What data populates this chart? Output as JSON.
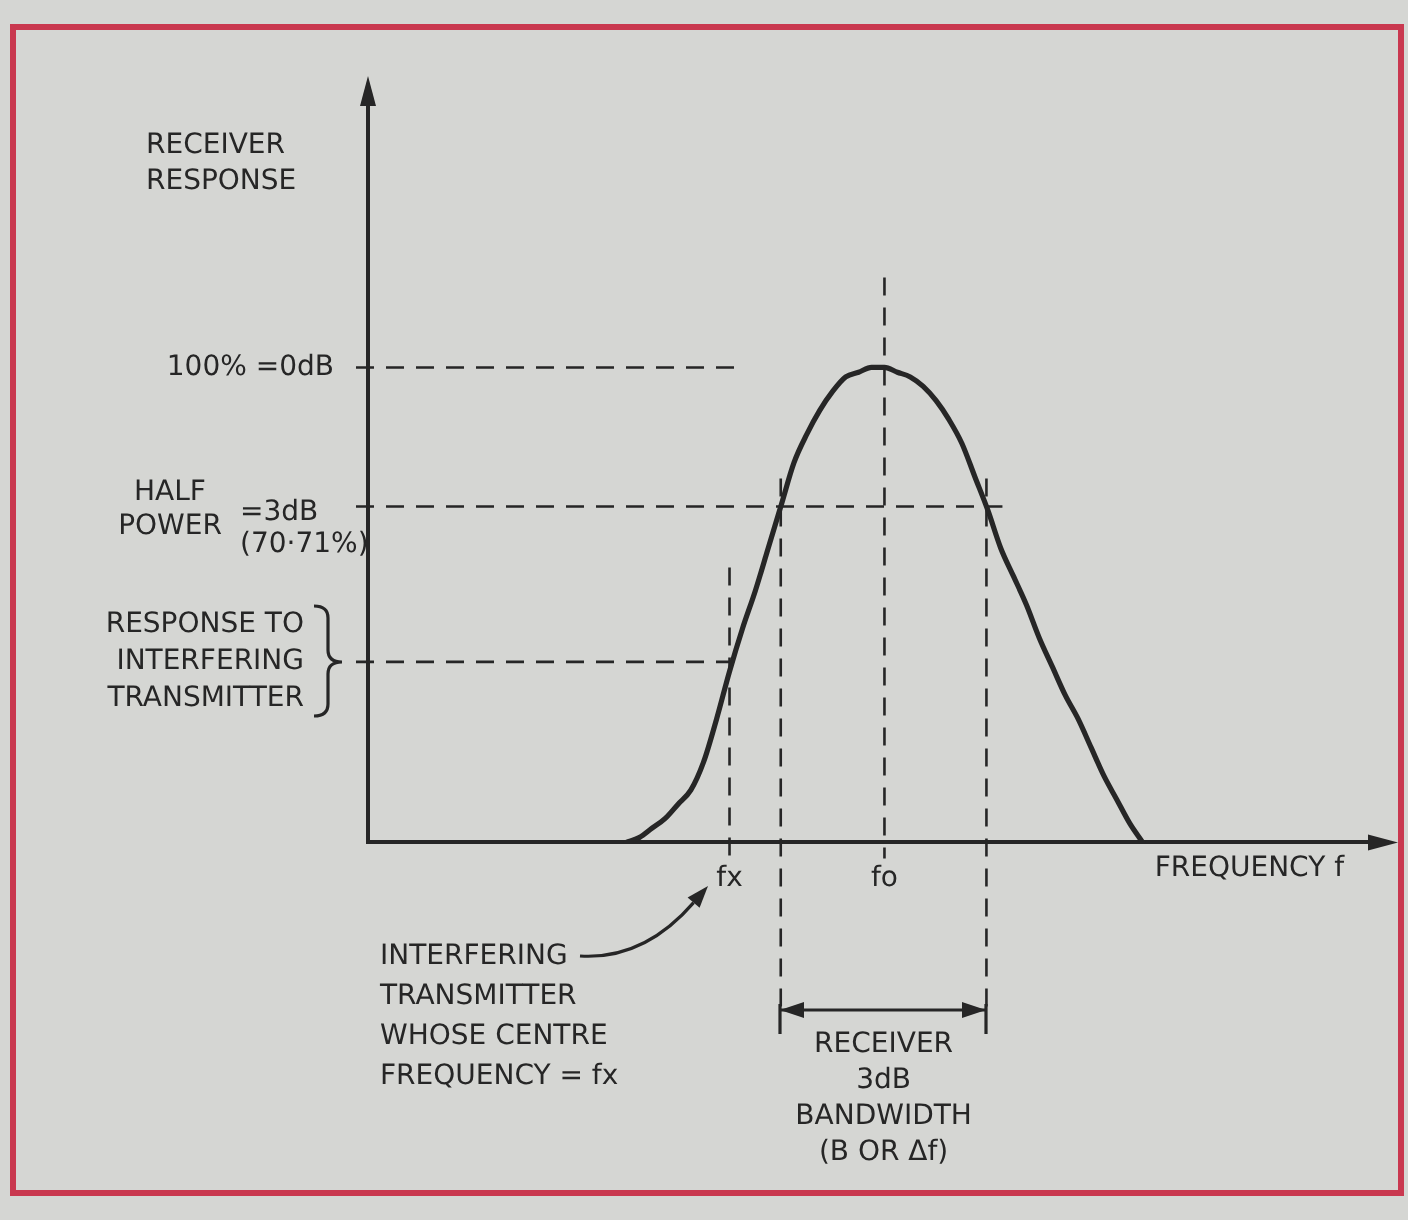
{
  "chart_data": {
    "type": "line",
    "xlabel": "FREQUENCY f",
    "ylabel": "RECEIVER RESPONSE",
    "categories": [
      null,
      null,
      null,
      null,
      null,
      null,
      null,
      null,
      null,
      null,
      null,
      null,
      null,
      null,
      null,
      null,
      null,
      null,
      null,
      null,
      null,
      null,
      null,
      null,
      null,
      null,
      null,
      null,
      "fx",
      null,
      null,
      null,
      null,
      null,
      null,
      null,
      null,
      null,
      null,
      null,
      "fo",
      null,
      null,
      null,
      null,
      null,
      null,
      null,
      null,
      null,
      null,
      null,
      null,
      null,
      null,
      null,
      null,
      null,
      null,
      null,
      null,
      null,
      null,
      null,
      null,
      null,
      null,
      null,
      null,
      null,
      null,
      null,
      null,
      null,
      null,
      null,
      null,
      null,
      null,
      null
    ],
    "values": [
      null,
      null,
      null,
      null,
      null,
      null,
      null,
      null,
      null,
      null,
      null,
      null,
      null,
      null,
      null,
      null,
      null,
      null,
      null,
      null,
      0,
      1,
      3,
      5,
      8,
      11,
      17,
      26,
      36,
      45,
      53,
      62,
      71,
      80,
      86,
      91,
      95,
      98,
      99,
      100,
      100,
      99,
      98,
      96,
      93,
      89,
      84,
      77,
      70,
      62,
      56,
      50,
      43,
      37,
      31,
      26,
      20,
      14,
      9,
      4,
      0,
      null,
      null,
      null,
      null,
      null,
      null,
      null,
      null,
      null,
      null,
      null,
      null,
      null,
      null,
      null,
      null,
      null,
      null,
      null
    ],
    "color": "#262626",
    "ylim": [
      0,
      158
    ],
    "ref_lines": [
      {
        "axis": "y",
        "value": 100,
        "label": "100% =0dB",
        "line_style": "dashed"
      },
      {
        "axis": "y",
        "value": 70.71,
        "label": "HALF POWER =3dB (70·71%)",
        "line_style": "dashed"
      },
      {
        "axis": "y",
        "value": 38,
        "label": "RESPONSE TO INTERFERING TRANSMITTER",
        "line_style": "dashed"
      },
      {
        "axis": "x",
        "value": "fx",
        "line_style": "dashed"
      }
    ],
    "annotations": [
      "INTERFERING TRANSMITTER WHOSE CENTRE FREQUENCY = fx",
      "RECEIVER 3dB BANDWIDTH (B OR Δf)"
    ],
    "grid": "x",
    "legend": false,
    "tick_labels": "x"
  }
}
